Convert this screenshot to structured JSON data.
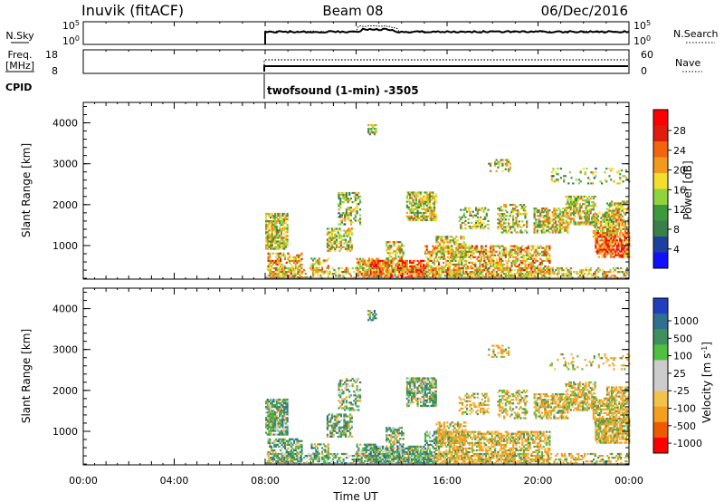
{
  "header": {
    "station": "Inuvik (fitACF)",
    "beam": "Beam 08",
    "date": "06/Dec/2016"
  },
  "strip_noise": {
    "left_label": "N.Sky",
    "right_label": "N.Search",
    "left_ticks": [
      "10^5",
      "10^0"
    ],
    "right_ticks": [
      "10^5",
      "10^0"
    ]
  },
  "strip_freq": {
    "left_label_1": "Freq.",
    "left_label_2": "[MHz]",
    "right_label": "Nave",
    "left_ticks": [
      "18",
      "8"
    ],
    "right_ticks": [
      "60",
      "0"
    ]
  },
  "cpid": {
    "label": "CPID",
    "program": "twofsound (1-min) -3505"
  },
  "colors": {
    "power_scale": [
      "#1010ff",
      "#1f3f9f",
      "#3a7f48",
      "#3c9a3c",
      "#8fd43c",
      "#f4dd2c",
      "#f29a1e",
      "#f2650f",
      "#e01c0c",
      "#ff0000"
    ],
    "velocity_scale": [
      "#ff0000",
      "#ee5a00",
      "#f59f1e",
      "#f2c24c",
      "#cccccc",
      "#cccccc",
      "#4fbf3f",
      "#3f8f5f",
      "#2f6f8f",
      "#1f3fbf"
    ]
  },
  "chart_data": [
    {
      "type": "heatmap",
      "name": "power-panel",
      "ylabel": "Slant Range [km]",
      "colorbar_label": "Power [dB]",
      "colorbar_ticks": [
        "28",
        "24",
        "20",
        "16",
        "12",
        "8",
        "4"
      ],
      "ylim": [
        180,
        4500
      ],
      "yticks": [
        1000,
        2000,
        3000,
        4000
      ],
      "xlim": [
        0,
        24
      ],
      "xticks": [
        "00:00",
        "04:00",
        "08:00",
        "12:00",
        "16:00",
        "20:00",
        "00:00"
      ],
      "xlabel": "Time UT",
      "data_start_hour": 8
    },
    {
      "type": "heatmap",
      "name": "velocity-panel",
      "ylabel": "Slant Range [km]",
      "colorbar_label": "Velocity [m s^-1]",
      "colorbar_ticks": [
        "1000",
        "500",
        "100",
        "25",
        "-25",
        "-100",
        "-500",
        "-1000"
      ],
      "ylim": [
        180,
        4500
      ],
      "yticks": [
        1000,
        2000,
        3000,
        4000
      ],
      "xlim": [
        0,
        24
      ],
      "xticks": [
        "00:00",
        "04:00",
        "08:00",
        "12:00",
        "16:00",
        "20:00",
        "00:00"
      ],
      "xlabel": "Time UT",
      "data_start_hour": 8
    }
  ]
}
